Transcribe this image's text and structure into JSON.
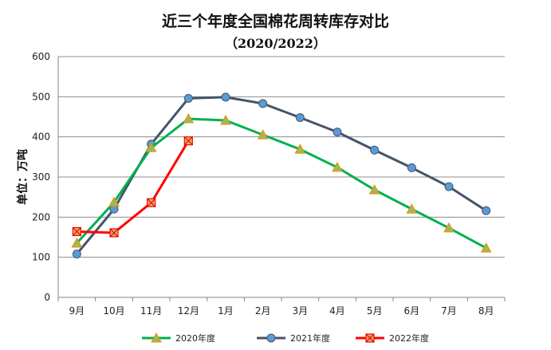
{
  "chart_data": {
    "type": "line",
    "title": "近三个年度全国棉花周转库存对比",
    "subtitle": "（2020/2022）",
    "ylabel": "单位：万吨",
    "xlabel": "",
    "ylim": [
      0,
      600
    ],
    "yticks": [
      0,
      100,
      200,
      300,
      400,
      500,
      600
    ],
    "grid": true,
    "legend": "bottom",
    "categories": [
      "9月",
      "10月",
      "11月",
      "12月",
      "1月",
      "2月",
      "3月",
      "4月",
      "5月",
      "6月",
      "7月",
      "8月"
    ],
    "series": [
      {
        "name": "2020年度",
        "color": "#00b050",
        "marker": "triangle",
        "values": [
          135,
          237,
          373,
          445,
          441,
          405,
          369,
          324,
          268,
          220,
          173,
          123
        ]
      },
      {
        "name": "2021年度",
        "color": "#44546a",
        "marker": "circle",
        "values": [
          108,
          220,
          382,
          496,
          499,
          483,
          448,
          412,
          367,
          323,
          276,
          216
        ]
      },
      {
        "name": "2022年度",
        "color": "#ff0000",
        "marker": "square-x",
        "values": [
          164,
          161,
          236,
          390,
          null,
          null,
          null,
          null,
          null,
          null,
          null,
          null
        ]
      }
    ]
  }
}
